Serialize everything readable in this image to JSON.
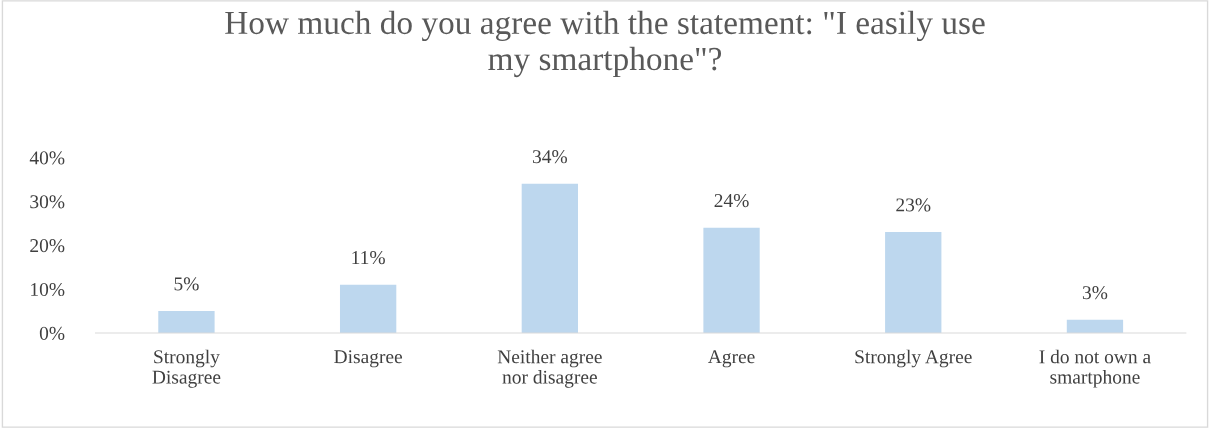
{
  "chart_data": {
    "type": "bar",
    "title": "How much do you agree with the statement: \"I easily use\nmy smartphone\"?",
    "categories": [
      "Strongly\nDisagree",
      "Disagree",
      "Neither agree\nnor disagree",
      "Agree",
      "Strongly Agree",
      "I do not own a\nsmartphone"
    ],
    "values": [
      5,
      11,
      34,
      24,
      23,
      3
    ],
    "value_labels": [
      "5%",
      "11%",
      "34%",
      "24%",
      "23%",
      "3%"
    ],
    "color": "#bdd7ee",
    "ylim": [
      0,
      40
    ],
    "yticks": [
      {
        "value": 0,
        "label": "0%"
      },
      {
        "value": 10,
        "label": "10%"
      },
      {
        "value": 20,
        "label": "20%"
      },
      {
        "value": 30,
        "label": "30%"
      },
      {
        "value": 40,
        "label": "40%"
      }
    ],
    "grid": false,
    "legend": false
  }
}
